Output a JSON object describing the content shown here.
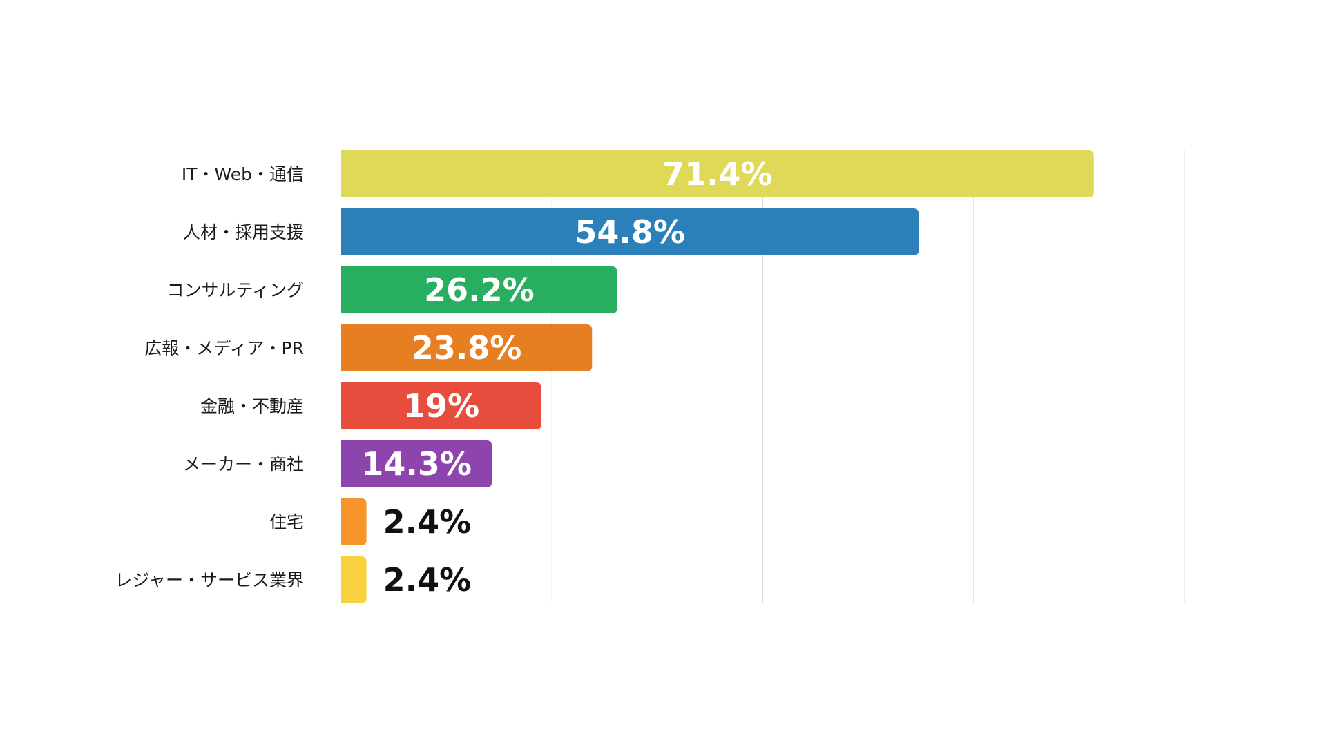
{
  "chart_data": {
    "type": "bar",
    "orientation": "horizontal",
    "title": "",
    "xlabel": "",
    "ylabel": "",
    "xlim": [
      0,
      80
    ],
    "grid": true,
    "legend": "none",
    "categories": [
      "IT・Web・通信",
      "人材・採用支援",
      "コンサルティング",
      "広報・メディア・PR",
      "金融・不動産",
      "メーカー・商社",
      "住宅",
      "レジャー・サービス業界"
    ],
    "values": [
      71.4,
      54.8,
      26.2,
      23.8,
      19,
      14.3,
      2.4,
      2.4
    ],
    "value_labels": [
      "71.4%",
      "54.8%",
      "26.2%",
      "23.8%",
      "19%",
      "14.3%",
      "2.4%",
      "2.4%"
    ],
    "colors": [
      "#E0D957",
      "#2B80B9",
      "#27AE60",
      "#E67E22",
      "#E74C3C",
      "#8E44AD",
      "#F7952B",
      "#F9D13E"
    ],
    "label_colors": [
      "#ffffff",
      "#ffffff",
      "#ffffff",
      "#ffffff",
      "#ffffff",
      "#ffffff",
      "#111111",
      "#111111"
    ]
  }
}
